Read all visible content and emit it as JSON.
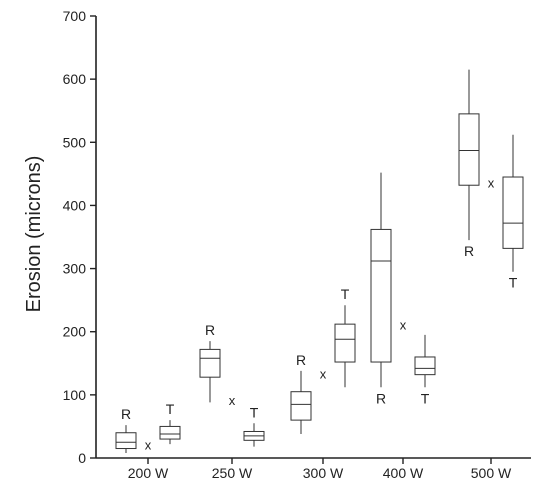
{
  "chart_data": {
    "type": "box",
    "title": "",
    "xlabel": "",
    "ylabel": "Erosion (microns)",
    "ylim": [
      0,
      700
    ],
    "yticks": [
      0,
      100,
      200,
      300,
      400,
      500,
      600,
      700
    ],
    "categories": [
      "200 W",
      "250 W",
      "300 W",
      "400 W",
      "500 W"
    ],
    "marker_text": "x",
    "series": [
      {
        "group": "200 W",
        "label": "R",
        "min": 8,
        "q1": 15,
        "median": 25,
        "q3": 40,
        "max": 52
      },
      {
        "group": "200 W",
        "label": "T",
        "min": 22,
        "q1": 30,
        "median": 38,
        "q3": 50,
        "max": 60
      },
      {
        "group": "250 W",
        "label": "R",
        "min": 88,
        "q1": 128,
        "median": 158,
        "q3": 172,
        "max": 185
      },
      {
        "group": "250 W",
        "label": "T",
        "min": 18,
        "q1": 28,
        "median": 35,
        "q3": 42,
        "max": 55
      },
      {
        "group": "300 W",
        "label": "R",
        "min": 38,
        "q1": 60,
        "median": 85,
        "q3": 105,
        "max": 138
      },
      {
        "group": "300 W",
        "label": "T",
        "min": 112,
        "q1": 152,
        "median": 188,
        "q3": 212,
        "max": 242
      },
      {
        "group": "400 W",
        "label": "R",
        "min": 112,
        "q1": 152,
        "median": 312,
        "q3": 362,
        "max": 452
      },
      {
        "group": "400 W",
        "label": "T",
        "min": 112,
        "q1": 132,
        "median": 142,
        "q3": 160,
        "max": 195
      },
      {
        "group": "500 W",
        "label": "R",
        "min": 345,
        "q1": 432,
        "median": 487,
        "q3": 545,
        "max": 615
      },
      {
        "group": "500 W",
        "label": "T",
        "min": 295,
        "q1": 332,
        "median": 372,
        "q3": 445,
        "max": 512
      }
    ]
  }
}
